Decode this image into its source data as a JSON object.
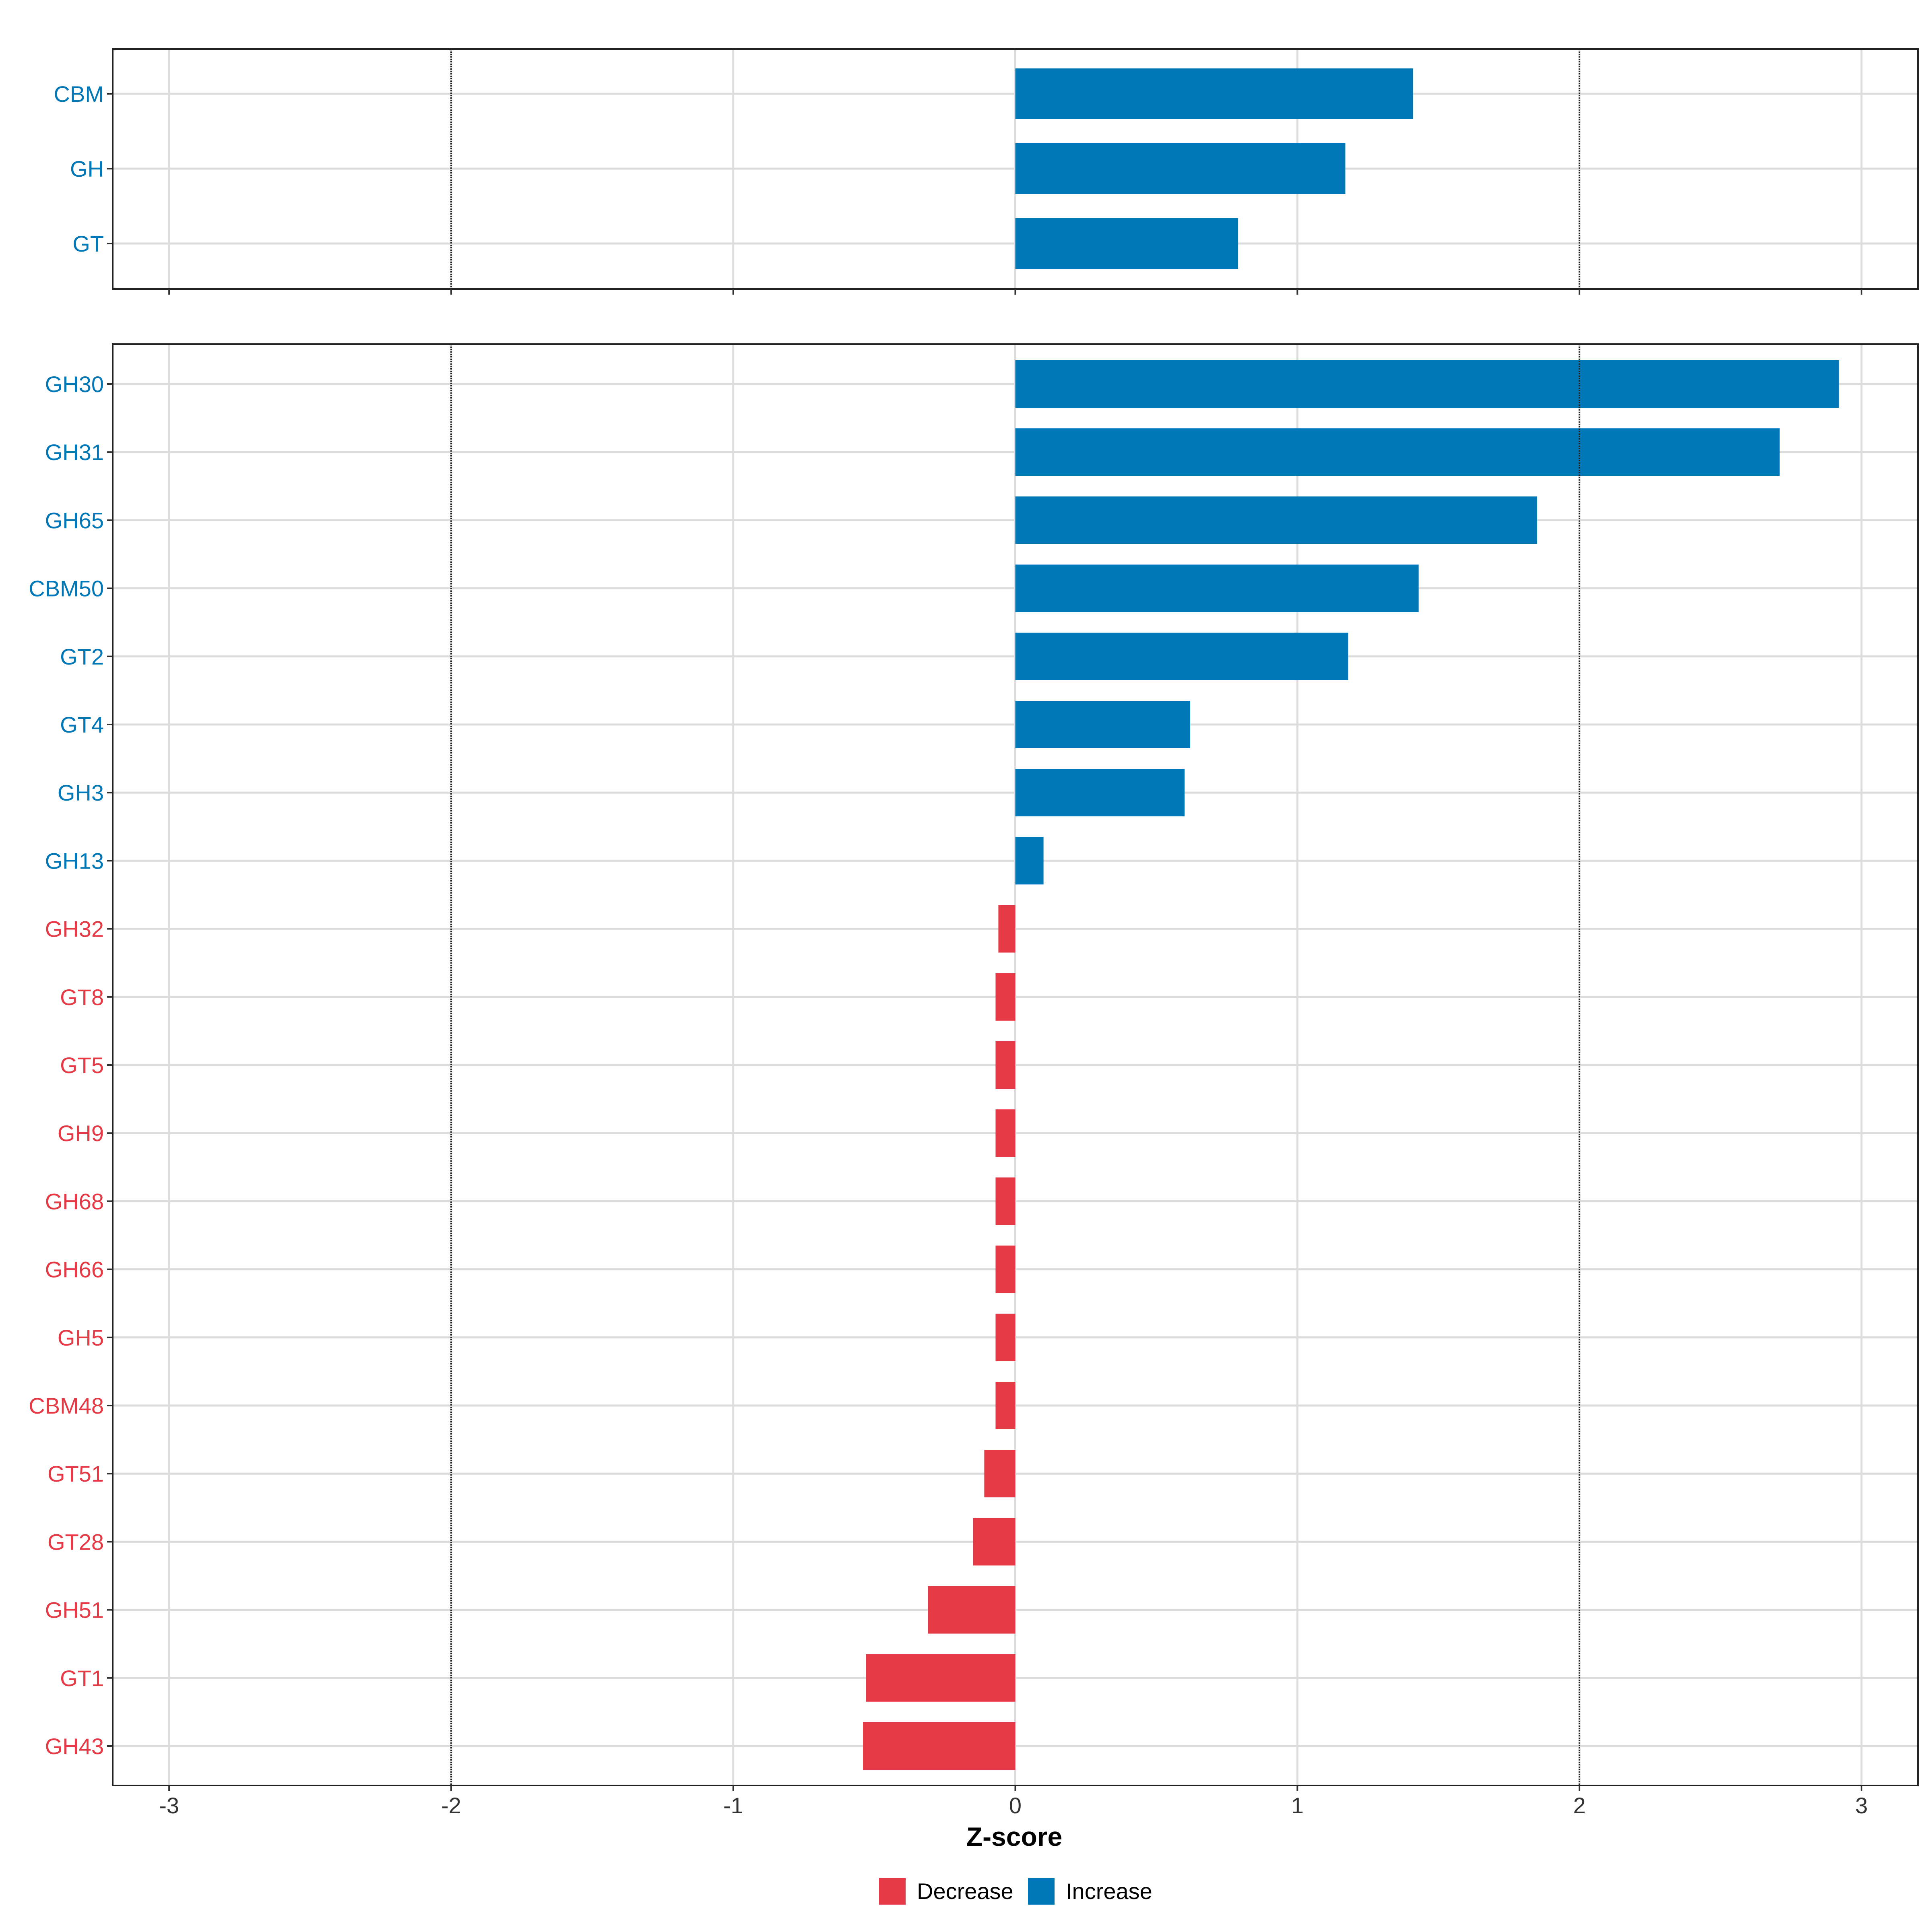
{
  "chart_data": {
    "type": "bar",
    "orientation": "horizontal",
    "xlabel": "Z-score",
    "xlim": [
      -3.2,
      3.2
    ],
    "xticks": [
      -3,
      -2,
      -1,
      0,
      1,
      2,
      3
    ],
    "reference_lines": [
      -2,
      2
    ],
    "grid": true,
    "legend_position": "bottom",
    "legend": [
      {
        "label": "Decrease",
        "color": "#e63946"
      },
      {
        "label": "Increase",
        "color": "#0077b6"
      }
    ],
    "panels": [
      {
        "name": "",
        "categories": [
          "CBM",
          "GH",
          "GT"
        ],
        "values": [
          1.41,
          1.17,
          0.79
        ]
      },
      {
        "name": "",
        "categories": [
          "GH30",
          "GH31",
          "GH65",
          "CBM50",
          "GT2",
          "GT4",
          "GH3",
          "GH13",
          "GH32",
          "GT8",
          "GT5",
          "GH9",
          "GH68",
          "GH66",
          "GH5",
          "CBM48",
          "GT51",
          "GT28",
          "GH51",
          "GT1",
          "GH43"
        ],
        "values": [
          2.92,
          2.71,
          1.85,
          1.43,
          1.18,
          0.62,
          0.6,
          0.1,
          -0.06,
          -0.07,
          -0.07,
          -0.07,
          -0.07,
          -0.07,
          -0.07,
          -0.07,
          -0.11,
          -0.15,
          -0.31,
          -0.53,
          -0.54
        ]
      }
    ]
  }
}
